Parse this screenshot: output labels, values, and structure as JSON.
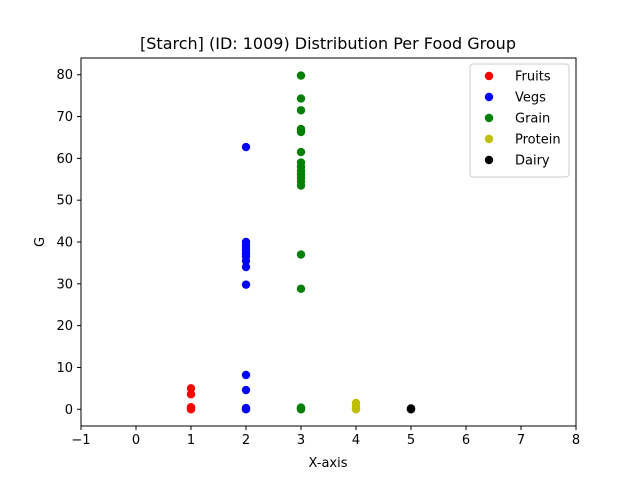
{
  "chart_data": {
    "type": "scatter",
    "title": "[Starch] (ID: 1009) Distribution Per Food Group",
    "xlabel": "X-axis",
    "ylabel": "G",
    "xlim": [
      -1,
      8
    ],
    "ylim": [
      -4,
      84
    ],
    "xticks": [
      -1,
      0,
      1,
      2,
      3,
      4,
      5,
      6,
      7,
      8
    ],
    "yticks": [
      0,
      10,
      20,
      30,
      40,
      50,
      60,
      70,
      80
    ],
    "grid": false,
    "legend_position": "top-right",
    "series": [
      {
        "name": "Fruits",
        "color": "#ff0000",
        "x": [
          1,
          1,
          1,
          1,
          1,
          1
        ],
        "y": [
          0,
          0.1,
          0.3,
          0.5,
          3.6,
          5.0
        ]
      },
      {
        "name": "Vegs",
        "color": "#0000ff",
        "x": [
          2,
          2,
          2,
          2,
          2,
          2,
          2,
          2,
          2,
          2,
          2,
          2,
          2,
          2,
          2
        ],
        "y": [
          0,
          0.1,
          0.3,
          4.6,
          8.2,
          29.8,
          34.0,
          35.5,
          36.5,
          37.3,
          38.0,
          38.6,
          39.2,
          40.0,
          62.7
        ]
      },
      {
        "name": "Grain",
        "color": "#008000",
        "x": [
          3,
          3,
          3,
          3,
          3,
          3,
          3,
          3,
          3,
          3,
          3,
          3,
          3,
          3,
          3,
          3,
          3,
          3,
          3
        ],
        "y": [
          0,
          0.2,
          28.8,
          37.0,
          53.5,
          54.5,
          55.3,
          56.2,
          57.0,
          58.0,
          59.0,
          61.5,
          66.3,
          67.0,
          71.5,
          74.3,
          79.8,
          0.4,
          0.1
        ]
      },
      {
        "name": "Protein",
        "color": "#bfbf00",
        "x": [
          4,
          4,
          4,
          4
        ],
        "y": [
          0,
          0.2,
          0.7,
          1.5
        ]
      },
      {
        "name": "Dairy",
        "color": "#000000",
        "x": [
          5,
          5,
          5
        ],
        "y": [
          0,
          0.1,
          0.2
        ]
      }
    ]
  }
}
